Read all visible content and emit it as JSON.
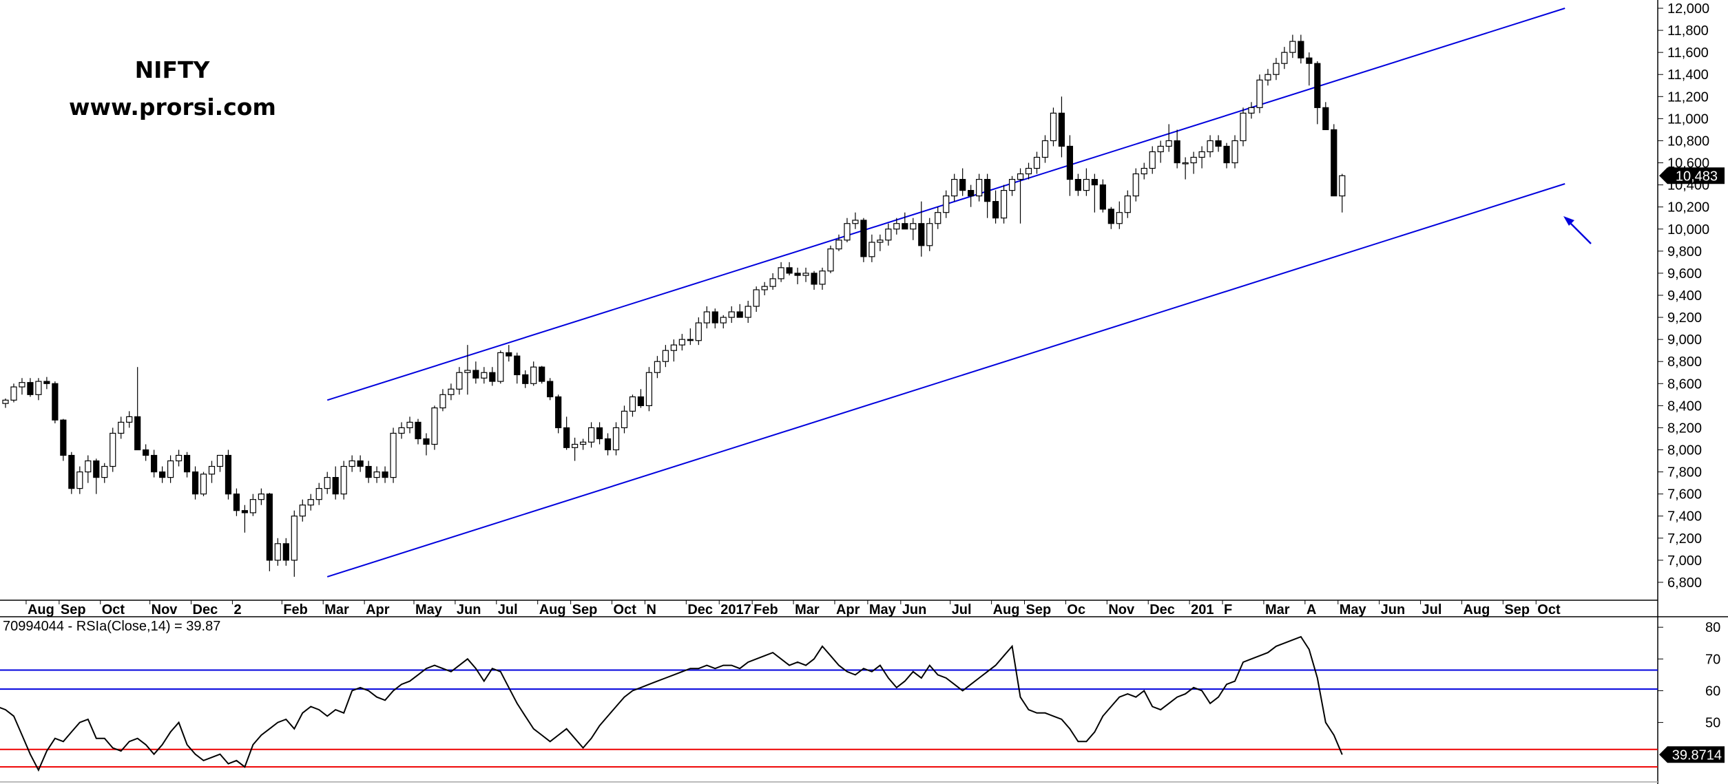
{
  "title_line1": "NIFTY",
  "title_line2": "www.prorsi.com",
  "indicator_label": "70994044 - RSIa(Close,14) = 39.87",
  "colors": {
    "channel": "#0000dd",
    "rsi_upper": "#0000dd",
    "rsi_lower": "#ee0000",
    "up_candle": "#ffffff",
    "down_candle": "#000000"
  },
  "chart_data": [
    {
      "type": "candlestick",
      "title": "NIFTY",
      "y_ticks": [
        "12,000",
        "11,800",
        "11,600",
        "11,400",
        "11,200",
        "11,000",
        "10,800",
        "10,600",
        "10,400",
        "10,200",
        "10,000",
        "9,800",
        "9,600",
        "9,400",
        "9,200",
        "9,000",
        "8,800",
        "8,600",
        "8,400",
        "8,200",
        "8,000",
        "7,800",
        "7,600",
        "7,400",
        "7,200",
        "7,000",
        "6,800"
      ],
      "ylim": [
        6700,
        12000
      ],
      "last_price_label": "10,483",
      "x_labels": [
        "Aug",
        "Sep",
        "Oct",
        "Nov",
        "Dec",
        "2",
        "Feb",
        "Mar",
        "Apr",
        "May",
        "Jun",
        "Jul",
        "Aug",
        "Sep",
        "Oct",
        "N",
        "Dec",
        "2017",
        "Feb",
        "Mar",
        "Apr",
        "May",
        "Jun",
        "Jul",
        "Aug",
        "Sep",
        "Oc",
        "Nov",
        "Dec",
        "201",
        "F",
        "Mar",
        "A",
        "May",
        "Jun",
        "Jul",
        "Aug",
        "Sep",
        "Oct"
      ],
      "x_label_weeks": [
        3,
        7,
        12,
        18,
        23,
        28,
        34,
        39,
        44,
        50,
        55,
        60,
        65,
        69,
        74,
        78,
        83,
        87,
        91,
        96,
        101,
        105,
        109,
        115,
        120,
        124,
        129,
        134,
        139,
        144,
        148,
        153,
        158,
        162,
        167,
        172,
        177,
        182,
        186
      ],
      "weeks_total": 190,
      "channel_upper": [
        [
          39,
          8450
        ],
        [
          189,
          12000
        ]
      ],
      "channel_lower": [
        [
          39,
          6850
        ],
        [
          189,
          10410
        ]
      ],
      "candles": [
        [
          8420,
          8465,
          8380,
          8450
        ],
        [
          8450,
          8600,
          8430,
          8570
        ],
        [
          8570,
          8650,
          8500,
          8610
        ],
        [
          8610,
          8650,
          8480,
          8500
        ],
        [
          8500,
          8650,
          8450,
          8620
        ],
        [
          8620,
          8660,
          8550,
          8600
        ],
        [
          8600,
          8620,
          8240,
          8270
        ],
        [
          8270,
          8280,
          7900,
          7950
        ],
        [
          7950,
          7980,
          7600,
          7650
        ],
        [
          7650,
          7850,
          7600,
          7800
        ],
        [
          7800,
          7950,
          7700,
          7900
        ],
        [
          7900,
          7920,
          7600,
          7750
        ],
        [
          7750,
          7880,
          7700,
          7850
        ],
        [
          7850,
          8200,
          7800,
          8150
        ],
        [
          8150,
          8300,
          8100,
          8250
        ],
        [
          8250,
          8350,
          8200,
          8300
        ],
        [
          8300,
          8750,
          8000,
          8000
        ],
        [
          8000,
          8050,
          7900,
          7950
        ],
        [
          7950,
          8000,
          7750,
          7800
        ],
        [
          7800,
          7850,
          7700,
          7750
        ],
        [
          7750,
          7950,
          7700,
          7900
        ],
        [
          7900,
          8000,
          7850,
          7950
        ],
        [
          7950,
          7980,
          7750,
          7800
        ],
        [
          7800,
          7850,
          7550,
          7600
        ],
        [
          7600,
          7800,
          7580,
          7780
        ],
        [
          7780,
          7900,
          7700,
          7850
        ],
        [
          7850,
          7950,
          7800,
          7950
        ],
        [
          7950,
          8000,
          7550,
          7600
        ],
        [
          7600,
          7650,
          7400,
          7450
        ],
        [
          7450,
          7500,
          7250,
          7430
        ],
        [
          7430,
          7600,
          7400,
          7550
        ],
        [
          7550,
          7650,
          7500,
          7600
        ],
        [
          7600,
          7610,
          6900,
          7000
        ],
        [
          7000,
          7200,
          6950,
          7150
        ],
        [
          7150,
          7200,
          6950,
          7000
        ],
        [
          7000,
          7450,
          6850,
          7400
        ],
        [
          7400,
          7550,
          7350,
          7500
        ],
        [
          7500,
          7600,
          7450,
          7550
        ],
        [
          7550,
          7700,
          7500,
          7650
        ],
        [
          7650,
          7800,
          7600,
          7750
        ],
        [
          7750,
          7850,
          7550,
          7600
        ],
        [
          7600,
          7900,
          7550,
          7850
        ],
        [
          7850,
          7950,
          7800,
          7900
        ],
        [
          7900,
          7950,
          7800,
          7850
        ],
        [
          7850,
          7900,
          7700,
          7750
        ],
        [
          7750,
          7850,
          7700,
          7800
        ],
        [
          7800,
          7850,
          7700,
          7750
        ],
        [
          7750,
          8200,
          7700,
          8150
        ],
        [
          8150,
          8250,
          8100,
          8200
        ],
        [
          8200,
          8300,
          8150,
          8250
        ],
        [
          8250,
          8280,
          8050,
          8100
        ],
        [
          8100,
          8150,
          7950,
          8050
        ],
        [
          8050,
          8400,
          8000,
          8380
        ],
        [
          8380,
          8550,
          8350,
          8500
        ],
        [
          8500,
          8600,
          8450,
          8550
        ],
        [
          8550,
          8750,
          8500,
          8700
        ],
        [
          8700,
          8950,
          8500,
          8720
        ],
        [
          8720,
          8800,
          8600,
          8650
        ],
        [
          8650,
          8750,
          8600,
          8700
        ],
        [
          8700,
          8750,
          8580,
          8620
        ],
        [
          8620,
          8900,
          8600,
          8880
        ],
        [
          8880,
          8950,
          8800,
          8850
        ],
        [
          8850,
          8880,
          8600,
          8680
        ],
        [
          8680,
          8720,
          8560,
          8600
        ],
        [
          8600,
          8800,
          8580,
          8750
        ],
        [
          8750,
          8760,
          8600,
          8620
        ],
        [
          8620,
          8650,
          8450,
          8480
        ],
        [
          8480,
          8500,
          8150,
          8200
        ],
        [
          8200,
          8300,
          8000,
          8020
        ],
        [
          8020,
          8110,
          7900,
          8050
        ],
        [
          8050,
          8100,
          8000,
          8070
        ],
        [
          8070,
          8250,
          8020,
          8200
        ],
        [
          8200,
          8250,
          8050,
          8100
        ],
        [
          8100,
          8150,
          7950,
          8000
        ],
        [
          8000,
          8250,
          7950,
          8200
        ],
        [
          8200,
          8400,
          8150,
          8350
        ],
        [
          8350,
          8500,
          8300,
          8480
        ],
        [
          8480,
          8550,
          8380,
          8400
        ],
        [
          8400,
          8750,
          8350,
          8700
        ],
        [
          8700,
          8850,
          8650,
          8800
        ],
        [
          8800,
          8950,
          8750,
          8900
        ],
        [
          8900,
          9000,
          8800,
          8950
        ],
        [
          8950,
          9050,
          8900,
          9000
        ],
        [
          9000,
          9100,
          8950,
          8990
        ],
        [
          8990,
          9200,
          8950,
          9150
        ],
        [
          9150,
          9300,
          9100,
          9250
        ],
        [
          9250,
          9280,
          9100,
          9150
        ],
        [
          9150,
          9220,
          9100,
          9200
        ],
        [
          9200,
          9300,
          9150,
          9250
        ],
        [
          9250,
          9320,
          9200,
          9200
        ],
        [
          9200,
          9350,
          9150,
          9300
        ],
        [
          9300,
          9480,
          9250,
          9450
        ],
        [
          9450,
          9520,
          9400,
          9480
        ],
        [
          9480,
          9600,
          9450,
          9550
        ],
        [
          9550,
          9700,
          9520,
          9650
        ],
        [
          9650,
          9700,
          9580,
          9600
        ],
        [
          9600,
          9650,
          9500,
          9580
        ],
        [
          9580,
          9650,
          9520,
          9600
        ],
        [
          9600,
          9620,
          9450,
          9500
        ],
        [
          9500,
          9650,
          9450,
          9620
        ],
        [
          9620,
          9850,
          9600,
          9820
        ],
        [
          9820,
          9950,
          9800,
          9900
        ],
        [
          9900,
          10100,
          9880,
          10050
        ],
        [
          10050,
          10150,
          10000,
          10080
        ],
        [
          10080,
          10100,
          9700,
          9750
        ],
        [
          9750,
          9950,
          9700,
          9880
        ],
        [
          9880,
          9950,
          9800,
          9900
        ],
        [
          9900,
          10050,
          9850,
          10000
        ],
        [
          10000,
          10100,
          9950,
          10050
        ],
        [
          10050,
          10150,
          10000,
          10000
        ],
        [
          10000,
          10100,
          9900,
          10050
        ],
        [
          10050,
          10250,
          9750,
          9850
        ],
        [
          9850,
          10100,
          9800,
          10050
        ],
        [
          10050,
          10200,
          10000,
          10150
        ],
        [
          10150,
          10350,
          10100,
          10300
        ],
        [
          10300,
          10500,
          10250,
          10450
        ],
        [
          10450,
          10550,
          10300,
          10350
        ],
        [
          10350,
          10400,
          10200,
          10300
        ],
        [
          10300,
          10500,
          10250,
          10450
        ],
        [
          10450,
          10500,
          10100,
          10250
        ],
        [
          10250,
          10350,
          10050,
          10100
        ],
        [
          10100,
          10400,
          10050,
          10350
        ],
        [
          10350,
          10480,
          10300,
          10450
        ],
        [
          10450,
          10550,
          10050,
          10500
        ],
        [
          10500,
          10600,
          10450,
          10550
        ],
        [
          10550,
          10700,
          10500,
          10650
        ],
        [
          10650,
          10850,
          10600,
          10800
        ],
        [
          10800,
          11100,
          10750,
          11050
        ],
        [
          11050,
          11200,
          10650,
          10750
        ],
        [
          10750,
          10850,
          10300,
          10450
        ],
        [
          10450,
          10500,
          10300,
          10350
        ],
        [
          10350,
          10550,
          10300,
          10450
        ],
        [
          10450,
          10500,
          10150,
          10400
        ],
        [
          10400,
          10450,
          10150,
          10180
        ],
        [
          10180,
          10200,
          10000,
          10050
        ],
        [
          10050,
          10250,
          10000,
          10150
        ],
        [
          10150,
          10350,
          10100,
          10300
        ],
        [
          10300,
          10550,
          10250,
          10500
        ],
        [
          10500,
          10600,
          10450,
          10550
        ],
        [
          10550,
          10750,
          10500,
          10700
        ],
        [
          10700,
          10800,
          10600,
          10750
        ],
        [
          10750,
          10950,
          10700,
          10800
        ],
        [
          10800,
          10900,
          10550,
          10600
        ],
        [
          10600,
          10650,
          10450,
          10600
        ],
        [
          10600,
          10700,
          10500,
          10650
        ],
        [
          10650,
          10750,
          10550,
          10700
        ],
        [
          10700,
          10850,
          10650,
          10800
        ],
        [
          10800,
          10850,
          10700,
          10750
        ],
        [
          10750,
          10780,
          10550,
          10600
        ],
        [
          10600,
          10850,
          10550,
          10800
        ],
        [
          10800,
          11100,
          10750,
          11050
        ],
        [
          11050,
          11150,
          11000,
          11100
        ],
        [
          11100,
          11400,
          11050,
          11350
        ],
        [
          11350,
          11450,
          11300,
          11400
        ],
        [
          11400,
          11550,
          11350,
          11500
        ],
        [
          11500,
          11650,
          11450,
          11600
        ],
        [
          11600,
          11760,
          11550,
          11700
        ],
        [
          11700,
          11760,
          11500,
          11550
        ],
        [
          11550,
          11600,
          11300,
          11500
        ],
        [
          11500,
          11520,
          10950,
          11100
        ],
        [
          11100,
          11150,
          10900,
          10900
        ],
        [
          10900,
          10950,
          10300,
          10300
        ],
        [
          10300,
          10500,
          10150,
          10483
        ]
      ]
    },
    {
      "type": "line",
      "title": "RSIa(Close,14)",
      "y_ticks": [
        "80",
        "70",
        "60",
        "50"
      ],
      "ylim": [
        33,
        82
      ],
      "upper_lines": [
        66.5,
        60.5
      ],
      "lower_lines": [
        41.5,
        36
      ],
      "last_value_label": "39.8714",
      "values": [
        52,
        49,
        54,
        56,
        55,
        54,
        52,
        46,
        40,
        35,
        41,
        45,
        44,
        47,
        50,
        51,
        45,
        45,
        42,
        41,
        44,
        45,
        43,
        40,
        43,
        47,
        50,
        43,
        40,
        38,
        39,
        40,
        37,
        38,
        36,
        43,
        46,
        48,
        50,
        51,
        48,
        53,
        55,
        54,
        52,
        54,
        53,
        60,
        61,
        60,
        58,
        57,
        60,
        62,
        63,
        65,
        67,
        68,
        67,
        66,
        68,
        70,
        67,
        63,
        67,
        66,
        61,
        56,
        52,
        48,
        46,
        44,
        46,
        48,
        45,
        42,
        45,
        49,
        52,
        55,
        58,
        60,
        61,
        62,
        63,
        64,
        65,
        66,
        67,
        67,
        68,
        67,
        68,
        68,
        67,
        69,
        70,
        71,
        72,
        70,
        68,
        69,
        68,
        70,
        74,
        71,
        68,
        66,
        65,
        67,
        66,
        68,
        64,
        61,
        63,
        66,
        64,
        68,
        65,
        64,
        62,
        60,
        62,
        64,
        66,
        68,
        71,
        74,
        58,
        54,
        53,
        53,
        52,
        51,
        48,
        44,
        44,
        47,
        52,
        55,
        58,
        59,
        58,
        60,
        55,
        54,
        56,
        58,
        59,
        61,
        60,
        56,
        58,
        62,
        63,
        69,
        70,
        71,
        72,
        74,
        75,
        76,
        77,
        73,
        64,
        50,
        46,
        39.87
      ]
    }
  ]
}
